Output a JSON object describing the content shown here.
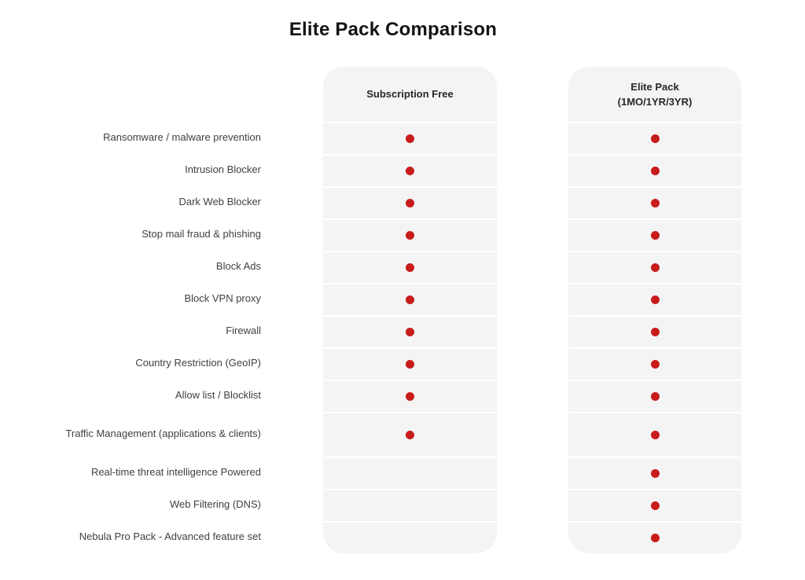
{
  "page": {
    "title": "Elite Pack Comparison"
  },
  "table": {
    "columns": {
      "free": {
        "title": "Subscription Free"
      },
      "elite": {
        "title_line1": "Elite Pack",
        "title_line2": "(1MO/1YR/3YR)"
      }
    },
    "features": [
      {
        "label": "Ransomware / malware prevention",
        "free": true,
        "elite": true
      },
      {
        "label": "Intrusion Blocker",
        "free": true,
        "elite": true
      },
      {
        "label": "Dark Web Blocker",
        "free": true,
        "elite": true
      },
      {
        "label": "Stop mail fraud & phishing",
        "free": true,
        "elite": true
      },
      {
        "label": "Block Ads",
        "free": true,
        "elite": true
      },
      {
        "label": "Block VPN proxy",
        "free": true,
        "elite": true
      },
      {
        "label": "Firewall",
        "free": true,
        "elite": true
      },
      {
        "label": "Country Restriction (GeoIP)",
        "free": true,
        "elite": true
      },
      {
        "label": "Allow list / Blocklist",
        "free": true,
        "elite": true
      },
      {
        "label": "Traffic Management (applications & clients)",
        "free": true,
        "elite": true,
        "tall": true
      },
      {
        "label": "Real-time threat intelligence Powered",
        "free": false,
        "elite": true
      },
      {
        "label": "Web Filtering (DNS)",
        "free": false,
        "elite": true
      },
      {
        "label": "Nebula Pro Pack - Advanced feature set",
        "free": false,
        "elite": true
      }
    ],
    "colors": {
      "dot": "#c81c1c",
      "cell_background": "#f4f4f4"
    }
  }
}
